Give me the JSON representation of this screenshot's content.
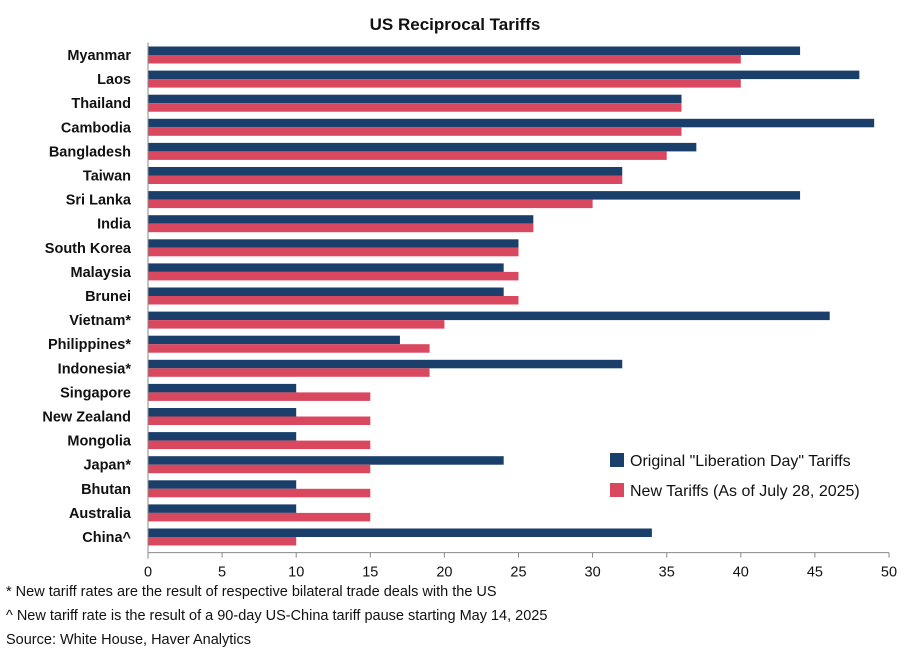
{
  "chart_data": {
    "type": "bar",
    "orientation": "horizontal",
    "title": "US Reciprocal Tariffs",
    "categories": [
      "Myanmar",
      "Laos",
      "Thailand",
      "Cambodia",
      "Bangladesh",
      "Taiwan",
      "Sri Lanka",
      "India",
      "South Korea",
      "Malaysia",
      "Brunei",
      "Vietnam*",
      "Philippines*",
      "Indonesia*",
      "Singapore",
      "New Zealand",
      "Mongolia",
      "Japan*",
      "Bhutan",
      "Australia",
      "China^"
    ],
    "series": [
      {
        "name": "Original \"Liberation Day\" Tariffs",
        "color": "#1b3f6b",
        "values": [
          44,
          48,
          36,
          49,
          37,
          32,
          44,
          26,
          25,
          24,
          24,
          46,
          17,
          32,
          10,
          10,
          10,
          24,
          10,
          10,
          34
        ]
      },
      {
        "name": "New Tariffs (As of July 28, 2025)",
        "color": "#d9485e",
        "values": [
          40,
          40,
          36,
          36,
          35,
          32,
          30,
          26,
          25,
          25,
          25,
          20,
          19,
          19,
          15,
          15,
          15,
          15,
          15,
          15,
          10
        ]
      }
    ],
    "xlim": [
      0,
      50
    ],
    "xticks": [
      "0",
      "5",
      "10",
      "15",
      "20",
      "25",
      "30",
      "35",
      "40",
      "45",
      "50"
    ],
    "xlabel": "",
    "ylabel": "",
    "legend_position": "lower-right"
  },
  "footnotes": {
    "note1": "* New tariff rates are the result of respective bilateral trade deals with the US",
    "note2": "^ New tariff rate is the result of a 90-day US-China tariff pause starting May 14, 2025",
    "source": "Source: White House, Haver Analytics"
  }
}
